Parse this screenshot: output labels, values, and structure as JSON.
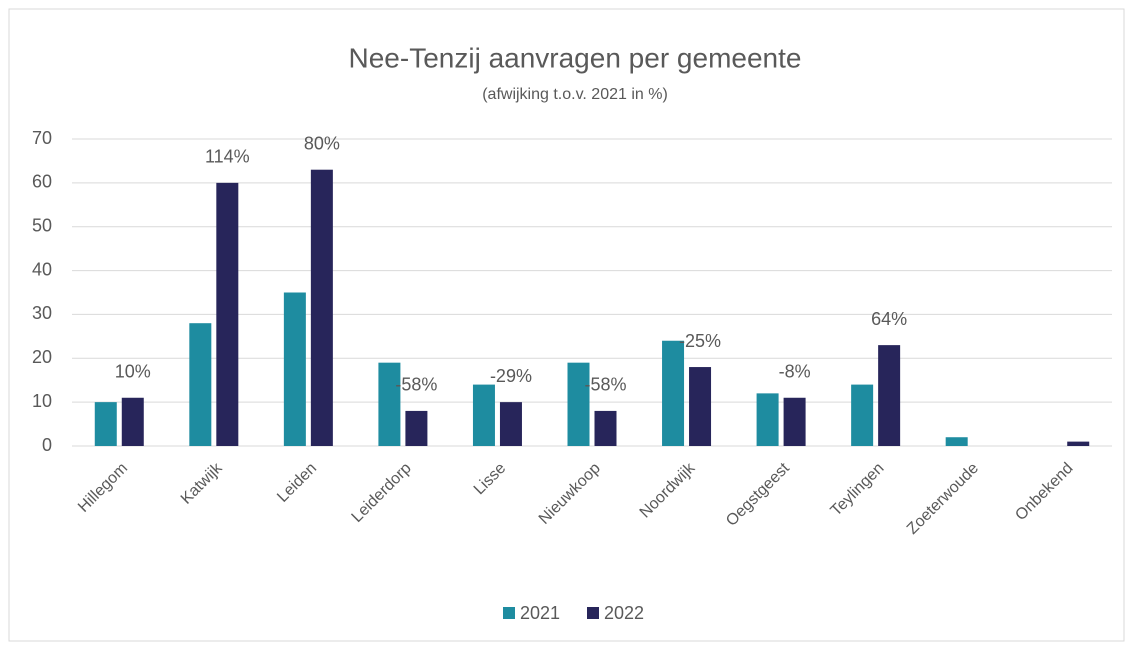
{
  "chart_data": {
    "type": "bar",
    "title": "Nee-Tenzij aanvragen per gemeente",
    "subtitle": "(afwijking t.o.v. 2021 in %)",
    "categories": [
      "Hillegom",
      "Katwijk",
      "Leiden",
      "Leiderdorp",
      "Lisse",
      "Nieuwkoop",
      "Noordwijk",
      "Oegstgeest",
      "Teylingen",
      "Zoeterwoude",
      "Onbekend"
    ],
    "series": [
      {
        "name": "2021",
        "color": "#1e8ca0",
        "values": [
          10,
          28,
          35,
          19,
          14,
          19,
          24,
          12,
          14,
          2,
          null
        ]
      },
      {
        "name": "2022",
        "color": "#27255a",
        "values": [
          11,
          60,
          63,
          8,
          10,
          8,
          18,
          11,
          23,
          null,
          1
        ]
      }
    ],
    "annotations": [
      "10%",
      "114%",
      "80%",
      "-58%",
      "-29%",
      "-58%",
      "-25%",
      "-8%",
      "64%",
      null,
      null
    ],
    "ylim": [
      0,
      70
    ],
    "yticks": [
      0,
      10,
      20,
      30,
      40,
      50,
      60,
      70
    ],
    "grid": true,
    "legend": "bottom"
  }
}
